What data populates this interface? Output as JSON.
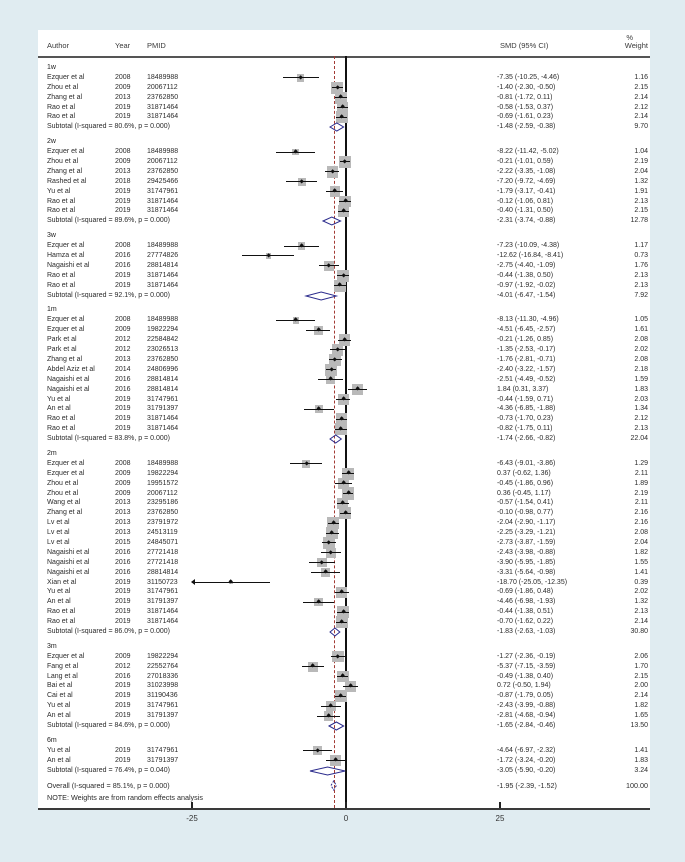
{
  "header": {
    "author": "Author",
    "year": "Year",
    "pmid": "PMID",
    "smd": "SMD (95% CI)",
    "weight_pct": "%",
    "weight": "Weight"
  },
  "note": "NOTE: Weights are from random effects analysis",
  "colors": {
    "page_bg": "#e0ecf1",
    "panel_bg": "#ffffff",
    "weight_square": "#b9b9b9",
    "ci_line": "#111111",
    "diamond_stroke": "#2b2b8c",
    "reference_line": "#a23b34",
    "zero_line": "#111111"
  },
  "chart_data": {
    "type": "scatter",
    "subtype": "forest-plot",
    "title": "",
    "xlabel": "SMD (95% CI)",
    "x_ticks": [
      -25,
      0,
      25
    ],
    "xlim": [
      -50,
      49
    ],
    "zero_line_x": 0,
    "reference_line_x": -1.95,
    "legend_position": "none",
    "grid": false,
    "groups": [
      {
        "label": "1w",
        "studies": [
          {
            "author": "Ezquer et al",
            "year": "2008",
            "pmid": "18489988",
            "est": -7.35,
            "lo": -10.25,
            "hi": -4.46,
            "smd": "-7.35 (-10.25, -4.46)",
            "weight": "1.16"
          },
          {
            "author": "Zhou et al",
            "year": "2009",
            "pmid": "20067112",
            "est": -1.4,
            "lo": -2.3,
            "hi": -0.5,
            "smd": "-1.40 (-2.30, -0.50)",
            "weight": "2.15"
          },
          {
            "author": "Zhang et al",
            "year": "2013",
            "pmid": "23762850",
            "est": -0.81,
            "lo": -1.72,
            "hi": 0.11,
            "smd": "-0.81 (-1.72, 0.11)",
            "weight": "2.14"
          },
          {
            "author": "Rao et al",
            "year": "2019",
            "pmid": "31871464",
            "est": -0.58,
            "lo": -1.53,
            "hi": 0.37,
            "smd": "-0.58 (-1.53, 0.37)",
            "weight": "2.12"
          },
          {
            "author": "Rao et al",
            "year": "2019",
            "pmid": "31871464",
            "est": -0.69,
            "lo": -1.61,
            "hi": 0.23,
            "smd": "-0.69 (-1.61, 0.23)",
            "weight": "2.14"
          }
        ],
        "subtotal": {
          "label": "Subtotal  (I-squared = 80.6%, p = 0.000)",
          "est": -1.48,
          "lo": -2.59,
          "hi": -0.38,
          "smd": "-1.48 (-2.59, -0.38)",
          "weight": "9.70"
        }
      },
      {
        "label": "2w",
        "studies": [
          {
            "author": "Ezquer et al",
            "year": "2008",
            "pmid": "18489988",
            "est": -8.22,
            "lo": -11.42,
            "hi": -5.02,
            "smd": "-8.22 (-11.42, -5.02)",
            "weight": "1.04"
          },
          {
            "author": "Zhou et al",
            "year": "2009",
            "pmid": "20067112",
            "est": -0.21,
            "lo": -1.01,
            "hi": 0.59,
            "smd": "-0.21 (-1.01, 0.59)",
            "weight": "2.19"
          },
          {
            "author": "Zhang et al",
            "year": "2013",
            "pmid": "23762850",
            "est": -2.22,
            "lo": -3.35,
            "hi": -1.08,
            "smd": "-2.22 (-3.35, -1.08)",
            "weight": "2.04"
          },
          {
            "author": "Rashed et al",
            "year": "2018",
            "pmid": "29425466",
            "est": -7.2,
            "lo": -9.72,
            "hi": -4.69,
            "smd": "-7.20 (-9.72, -4.69)",
            "weight": "1.32"
          },
          {
            "author": "Yu et al",
            "year": "2019",
            "pmid": "31747961",
            "est": -1.79,
            "lo": -3.17,
            "hi": -0.41,
            "smd": "-1.79 (-3.17, -0.41)",
            "weight": "1.91"
          },
          {
            "author": "Rao et al",
            "year": "2019",
            "pmid": "31871464",
            "est": -0.12,
            "lo": -1.06,
            "hi": 0.81,
            "smd": "-0.12 (-1.06, 0.81)",
            "weight": "2.13"
          },
          {
            "author": "Rao et al",
            "year": "2019",
            "pmid": "31871464",
            "est": -0.4,
            "lo": -1.31,
            "hi": 0.5,
            "smd": "-0.40 (-1.31, 0.50)",
            "weight": "2.15"
          }
        ],
        "subtotal": {
          "label": "Subtotal  (I-squared = 89.6%, p = 0.000)",
          "est": -2.31,
          "lo": -3.74,
          "hi": -0.88,
          "smd": "-2.31 (-3.74, -0.88)",
          "weight": "12.78"
        }
      },
      {
        "label": "3w",
        "studies": [
          {
            "author": "Ezquer et al",
            "year": "2008",
            "pmid": "18489988",
            "est": -7.23,
            "lo": -10.09,
            "hi": -4.38,
            "smd": "-7.23 (-10.09, -4.38)",
            "weight": "1.17"
          },
          {
            "author": "Hamza et al",
            "year": "2016",
            "pmid": "27774826",
            "est": -12.62,
            "lo": -16.84,
            "hi": -8.41,
            "smd": "-12.62 (-16.84, -8.41)",
            "weight": "0.73"
          },
          {
            "author": "Nagaishi et al",
            "year": "2016",
            "pmid": "28814814",
            "est": -2.75,
            "lo": -4.4,
            "hi": -1.09,
            "smd": "-2.75 (-4.40, -1.09)",
            "weight": "1.76"
          },
          {
            "author": "Rao et al",
            "year": "2019",
            "pmid": "31871464",
            "est": -0.44,
            "lo": -1.38,
            "hi": 0.5,
            "smd": "-0.44 (-1.38, 0.50)",
            "weight": "2.13"
          },
          {
            "author": "Rao et al",
            "year": "2019",
            "pmid": "31871464",
            "est": -0.97,
            "lo": -1.92,
            "hi": -0.02,
            "smd": "-0.97 (-1.92, -0.02)",
            "weight": "2.13"
          }
        ],
        "subtotal": {
          "label": "Subtotal  (I-squared = 92.1%, p = 0.000)",
          "est": -4.01,
          "lo": -6.47,
          "hi": -1.54,
          "smd": "-4.01 (-6.47, -1.54)",
          "weight": "7.92"
        }
      },
      {
        "label": "1m",
        "studies": [
          {
            "author": "Ezquer et al",
            "year": "2008",
            "pmid": "18489988",
            "est": -8.13,
            "lo": -11.3,
            "hi": -4.96,
            "smd": "-8.13 (-11.30, -4.96)",
            "weight": "1.05"
          },
          {
            "author": "Ezquer et al",
            "year": "2009",
            "pmid": "19822294",
            "est": -4.51,
            "lo": -6.45,
            "hi": -2.57,
            "smd": "-4.51 (-6.45, -2.57)",
            "weight": "1.61"
          },
          {
            "author": "Park et al",
            "year": "2012",
            "pmid": "22584842",
            "est": -0.21,
            "lo": -1.26,
            "hi": 0.85,
            "smd": "-0.21 (-1.26, 0.85)",
            "weight": "2.08"
          },
          {
            "author": "Park et al",
            "year": "2012",
            "pmid": "23026513",
            "est": -1.35,
            "lo": -2.53,
            "hi": -0.17,
            "smd": "-1.35 (-2.53, -0.17)",
            "weight": "2.02"
          },
          {
            "author": "Zhang et al",
            "year": "2013",
            "pmid": "23762850",
            "est": -1.76,
            "lo": -2.81,
            "hi": -0.71,
            "smd": "-1.76 (-2.81, -0.71)",
            "weight": "2.08"
          },
          {
            "author": "Abdel Aziz et al",
            "year": "2014",
            "pmid": "24806996",
            "est": -2.4,
            "lo": -3.22,
            "hi": -1.57,
            "smd": "-2.40 (-3.22, -1.57)",
            "weight": "2.18"
          },
          {
            "author": "Nagaishi et al",
            "year": "2016",
            "pmid": "28814814",
            "est": -2.51,
            "lo": -4.49,
            "hi": -0.52,
            "smd": "-2.51 (-4.49, -0.52)",
            "weight": "1.59"
          },
          {
            "author": "Nagaishi et al",
            "year": "2016",
            "pmid": "28814814",
            "est": 1.84,
            "lo": 0.31,
            "hi": 3.37,
            "smd": "1.84 (0.31, 3.37)",
            "weight": "1.83"
          },
          {
            "author": "Yu et al",
            "year": "2019",
            "pmid": "31747961",
            "est": -0.44,
            "lo": -1.59,
            "hi": 0.71,
            "smd": "-0.44 (-1.59, 0.71)",
            "weight": "2.03"
          },
          {
            "author": "An et al",
            "year": "2019",
            "pmid": "31791397",
            "est": -4.36,
            "lo": -6.85,
            "hi": -1.88,
            "smd": "-4.36 (-6.85, -1.88)",
            "weight": "1.34"
          },
          {
            "author": "Rao et al",
            "year": "2019",
            "pmid": "31871464",
            "est": -0.73,
            "lo": -1.7,
            "hi": 0.23,
            "smd": "-0.73 (-1.70, 0.23)",
            "weight": "2.12"
          },
          {
            "author": "Rao et al",
            "year": "2019",
            "pmid": "31871464",
            "est": -0.82,
            "lo": -1.75,
            "hi": 0.11,
            "smd": "-0.82 (-1.75, 0.11)",
            "weight": "2.13"
          }
        ],
        "subtotal": {
          "label": "Subtotal  (I-squared = 83.8%, p = 0.000)",
          "est": -1.74,
          "lo": -2.66,
          "hi": -0.82,
          "smd": "-1.74 (-2.66, -0.82)",
          "weight": "22.04"
        }
      },
      {
        "label": "2m",
        "studies": [
          {
            "author": "Ezquer et al",
            "year": "2008",
            "pmid": "18489988",
            "est": -6.43,
            "lo": -9.01,
            "hi": -3.86,
            "smd": "-6.43 (-9.01, -3.86)",
            "weight": "1.29"
          },
          {
            "author": "Ezquer et al",
            "year": "2009",
            "pmid": "19822294",
            "est": 0.37,
            "lo": -0.62,
            "hi": 1.36,
            "smd": "0.37 (-0.62, 1.36)",
            "weight": "2.11"
          },
          {
            "author": "Zhou et al",
            "year": "2009",
            "pmid": "19951572",
            "est": -0.45,
            "lo": -1.86,
            "hi": 0.96,
            "smd": "-0.45 (-1.86, 0.96)",
            "weight": "1.89"
          },
          {
            "author": "Zhou et al",
            "year": "2009",
            "pmid": "20067112",
            "est": 0.36,
            "lo": -0.45,
            "hi": 1.17,
            "smd": "0.36 (-0.45, 1.17)",
            "weight": "2.19"
          },
          {
            "author": "Wang et al",
            "year": "2013",
            "pmid": "23295186",
            "est": -0.57,
            "lo": -1.54,
            "hi": 0.41,
            "smd": "-0.57 (-1.54, 0.41)",
            "weight": "2.11"
          },
          {
            "author": "Zhang et al",
            "year": "2013",
            "pmid": "23762850",
            "est": -0.1,
            "lo": -0.98,
            "hi": 0.77,
            "smd": "-0.10 (-0.98, 0.77)",
            "weight": "2.16"
          },
          {
            "author": "Lv et al",
            "year": "2013",
            "pmid": "23791972",
            "est": -2.04,
            "lo": -2.9,
            "hi": -1.17,
            "smd": "-2.04 (-2.90, -1.17)",
            "weight": "2.16"
          },
          {
            "author": "Lv et al",
            "year": "2013",
            "pmid": "24513119",
            "est": -2.25,
            "lo": -3.29,
            "hi": -1.21,
            "smd": "-2.25 (-3.29, -1.21)",
            "weight": "2.08"
          },
          {
            "author": "Lv et al",
            "year": "2015",
            "pmid": "24845071",
            "est": -2.73,
            "lo": -3.87,
            "hi": -1.59,
            "smd": "-2.73 (-3.87, -1.59)",
            "weight": "2.04"
          },
          {
            "author": "Nagaishi et al",
            "year": "2016",
            "pmid": "27721418",
            "est": -2.43,
            "lo": -3.98,
            "hi": -0.88,
            "smd": "-2.43 (-3.98, -0.88)",
            "weight": "1.82"
          },
          {
            "author": "Nagaishi et al",
            "year": "2016",
            "pmid": "27721418",
            "est": -3.9,
            "lo": -5.95,
            "hi": -1.85,
            "smd": "-3.90 (-5.95, -1.85)",
            "weight": "1.55"
          },
          {
            "author": "Nagaishi et al",
            "year": "2016",
            "pmid": "28814814",
            "est": -3.31,
            "lo": -5.64,
            "hi": -0.98,
            "smd": "-3.31 (-5.64, -0.98)",
            "weight": "1.41"
          },
          {
            "author": "Xian et al",
            "year": "2019",
            "pmid": "31150723",
            "est": -18.7,
            "lo": -25.05,
            "hi": -12.35,
            "smd": "-18.70 (-25.05, -12.35)",
            "weight": "0.39"
          },
          {
            "author": "Yu et al",
            "year": "2019",
            "pmid": "31747961",
            "est": -0.69,
            "lo": -1.86,
            "hi": 0.48,
            "smd": "-0.69 (-1.86, 0.48)",
            "weight": "2.02"
          },
          {
            "author": "An et al",
            "year": "2019",
            "pmid": "31791397",
            "est": -4.46,
            "lo": -6.98,
            "hi": -1.93,
            "smd": "-4.46 (-6.98, -1.93)",
            "weight": "1.32"
          },
          {
            "author": "Rao et al",
            "year": "2019",
            "pmid": "31871464",
            "est": -0.44,
            "lo": -1.38,
            "hi": 0.51,
            "smd": "-0.44 (-1.38, 0.51)",
            "weight": "2.13"
          },
          {
            "author": "Rao et al",
            "year": "2019",
            "pmid": "31871464",
            "est": -0.7,
            "lo": -1.62,
            "hi": 0.22,
            "smd": "-0.70 (-1.62, 0.22)",
            "weight": "2.14"
          }
        ],
        "subtotal": {
          "label": "Subtotal  (I-squared = 86.0%, p = 0.000)",
          "est": -1.83,
          "lo": -2.63,
          "hi": -1.03,
          "smd": "-1.83 (-2.63, -1.03)",
          "weight": "30.80"
        }
      },
      {
        "label": "3m",
        "studies": [
          {
            "author": "Ezquer et al",
            "year": "2009",
            "pmid": "19822294",
            "est": -1.27,
            "lo": -2.36,
            "hi": -0.19,
            "smd": "-1.27 (-2.36, -0.19)",
            "weight": "2.06"
          },
          {
            "author": "Fang et al",
            "year": "2012",
            "pmid": "22552764",
            "est": -5.37,
            "lo": -7.15,
            "hi": -3.59,
            "smd": "-5.37 (-7.15, -3.59)",
            "weight": "1.70"
          },
          {
            "author": "Lang et al",
            "year": "2016",
            "pmid": "27018336",
            "est": -0.49,
            "lo": -1.38,
            "hi": 0.4,
            "smd": "-0.49 (-1.38, 0.40)",
            "weight": "2.15"
          },
          {
            "author": "Bai et al",
            "year": "2019",
            "pmid": "31023998",
            "est": 0.72,
            "lo": -0.5,
            "hi": 1.94,
            "smd": "0.72 (-0.50, 1.94)",
            "weight": "2.00"
          },
          {
            "author": "Cai et al",
            "year": "2019",
            "pmid": "31190436",
            "est": -0.87,
            "lo": -1.79,
            "hi": 0.05,
            "smd": "-0.87 (-1.79, 0.05)",
            "weight": "2.14"
          },
          {
            "author": "Yu et al",
            "year": "2019",
            "pmid": "31747961",
            "est": -2.43,
            "lo": -3.99,
            "hi": -0.88,
            "smd": "-2.43 (-3.99, -0.88)",
            "weight": "1.82"
          },
          {
            "author": "An et al",
            "year": "2019",
            "pmid": "31791397",
            "est": -2.81,
            "lo": -4.68,
            "hi": -0.94,
            "smd": "-2.81 (-4.68, -0.94)",
            "weight": "1.65"
          }
        ],
        "subtotal": {
          "label": "Subtotal  (I-squared = 84.6%, p = 0.000)",
          "est": -1.65,
          "lo": -2.84,
          "hi": -0.46,
          "smd": "-1.65 (-2.84, -0.46)",
          "weight": "13.50"
        }
      },
      {
        "label": "6m",
        "studies": [
          {
            "author": "Yu et al",
            "year": "2019",
            "pmid": "31747961",
            "est": -4.64,
            "lo": -6.97,
            "hi": -2.32,
            "smd": "-4.64 (-6.97, -2.32)",
            "weight": "1.41"
          },
          {
            "author": "An et al",
            "year": "2019",
            "pmid": "31791397",
            "est": -1.72,
            "lo": -3.24,
            "hi": -0.2,
            "smd": "-1.72 (-3.24, -0.20)",
            "weight": "1.83"
          }
        ],
        "subtotal": {
          "label": "Subtotal  (I-squared = 76.4%, p = 0.040)",
          "est": -3.05,
          "lo": -5.9,
          "hi": -0.2,
          "smd": "-3.05 (-5.90, -0.20)",
          "weight": "3.24"
        }
      }
    ],
    "overall": {
      "label": "Overall  (I-squared = 85.1%, p = 0.000)",
      "est": -1.95,
      "lo": -2.39,
      "hi": -1.52,
      "smd": "-1.95 (-2.39, -1.52)",
      "weight": "100.00"
    }
  }
}
